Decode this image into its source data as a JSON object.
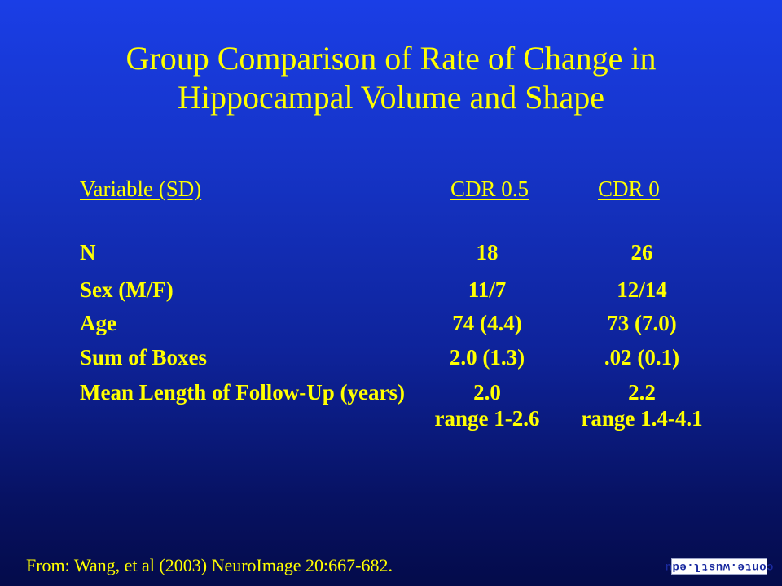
{
  "title": {
    "line1": "Group Comparison of Rate of Change in",
    "line2": "Hippocampal Volume and Shape"
  },
  "table": {
    "headers": [
      "Variable (SD)",
      "CDR 0.5",
      "CDR 0"
    ],
    "rows": [
      [
        "N",
        "18",
        "26"
      ],
      [
        "Sex (M/F)",
        "11/7",
        "12/14"
      ],
      [
        "Age",
        "74 (4.4)",
        "73 (7.0)"
      ],
      [
        "Sum of Boxes",
        "2.0 (1.3)",
        ".02 (0.1)"
      ],
      [
        "Mean Length of Follow-Up (years)",
        "2.0",
        "2.2"
      ],
      [
        "",
        "range 1-2.6",
        "range 1.4-4.1"
      ]
    ]
  },
  "footer": "From: Wang, et al (2003) NeuroImage  20:667-682.",
  "logo_text": "conte.wustl.edu",
  "colors": {
    "text": "#ffff00",
    "background_top": "#1a3ee6",
    "background_bottom": "#040b4a"
  }
}
